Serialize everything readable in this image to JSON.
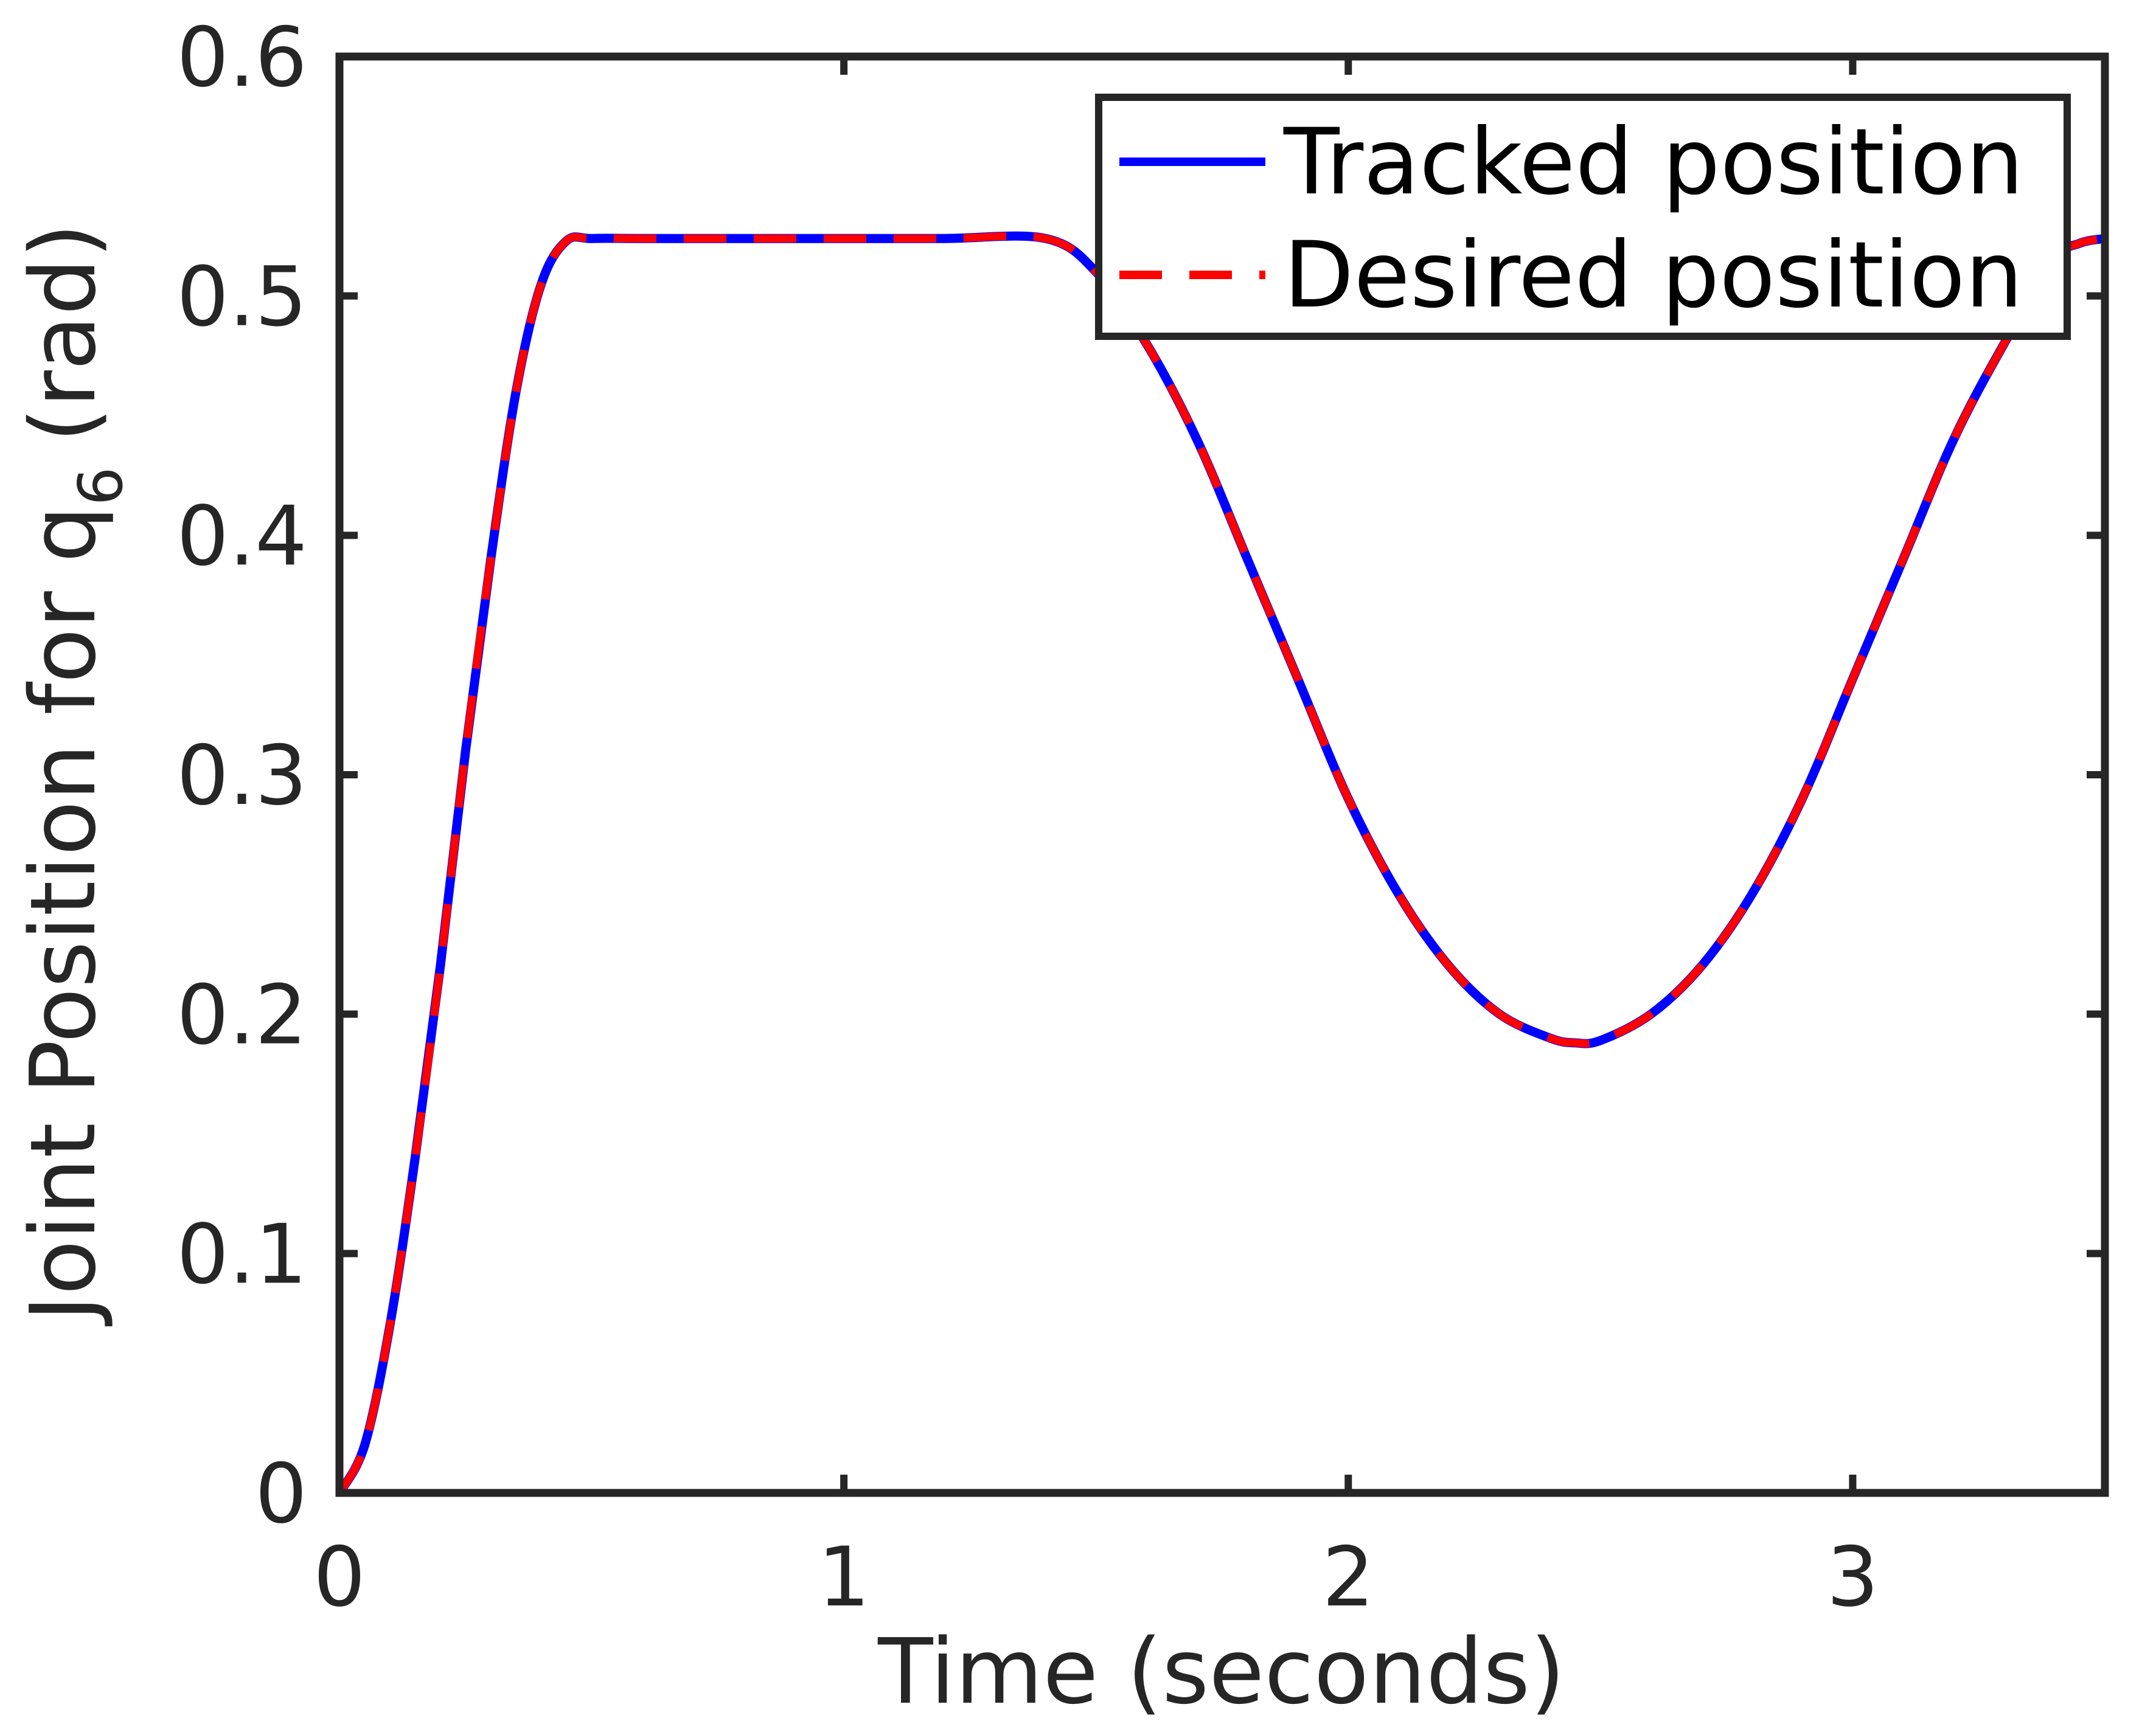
{
  "chart_data": {
    "type": "line",
    "xlabel": "Time (seconds)",
    "ylabel": {
      "main": "Joint Position for q",
      "subscript": "6",
      "unit": "(rad)"
    },
    "xlim": [
      0,
      3.5
    ],
    "ylim": [
      0,
      0.6
    ],
    "xticks": [
      0,
      1,
      2,
      3
    ],
    "xtick_labels": [
      "0",
      "1",
      "2",
      "3"
    ],
    "yticks": [
      0,
      0.1,
      0.2,
      0.3,
      0.4,
      0.5,
      0.6
    ],
    "ytick_labels": [
      "0",
      "0.1",
      "0.2",
      "0.3",
      "0.4",
      "0.5",
      "0.6"
    ],
    "grid": false,
    "legend_position": "top-right",
    "series": [
      {
        "name": "Tracked position",
        "color": "#0000ff",
        "style": "solid",
        "x": [
          0,
          0.05,
          0.1,
          0.15,
          0.2,
          0.25,
          0.3,
          0.35,
          0.4,
          0.45,
          0.5,
          0.6,
          0.8,
          1.0,
          1.2,
          1.4,
          1.5,
          1.6,
          1.7,
          1.8,
          1.9,
          2.0,
          2.1,
          2.2,
          2.3,
          2.4,
          2.45,
          2.5,
          2.6,
          2.7,
          2.8,
          2.9,
          3.0,
          3.1,
          3.2,
          3.3,
          3.4,
          3.45,
          3.5
        ],
        "y": [
          0,
          0.02,
          0.07,
          0.14,
          0.22,
          0.31,
          0.39,
          0.46,
          0.505,
          0.523,
          0.524,
          0.524,
          0.524,
          0.524,
          0.524,
          0.524,
          0.51,
          0.48,
          0.44,
          0.39,
          0.34,
          0.29,
          0.25,
          0.22,
          0.2,
          0.19,
          0.188,
          0.189,
          0.2,
          0.22,
          0.25,
          0.29,
          0.34,
          0.39,
          0.44,
          0.48,
          0.515,
          0.522,
          0.524
        ]
      },
      {
        "name": "Desired position",
        "color": "#ff0000",
        "style": "dashed",
        "x": [
          0,
          0.05,
          0.1,
          0.15,
          0.2,
          0.25,
          0.3,
          0.35,
          0.4,
          0.45,
          0.5,
          0.6,
          0.8,
          1.0,
          1.2,
          1.4,
          1.5,
          1.6,
          1.7,
          1.8,
          1.9,
          2.0,
          2.1,
          2.2,
          2.3,
          2.4,
          2.45,
          2.5,
          2.6,
          2.7,
          2.8,
          2.9,
          3.0,
          3.1,
          3.2,
          3.3,
          3.4,
          3.45,
          3.5
        ],
        "y": [
          0,
          0.02,
          0.07,
          0.14,
          0.22,
          0.31,
          0.39,
          0.46,
          0.505,
          0.523,
          0.524,
          0.524,
          0.524,
          0.524,
          0.524,
          0.524,
          0.51,
          0.48,
          0.44,
          0.39,
          0.34,
          0.29,
          0.25,
          0.22,
          0.2,
          0.19,
          0.188,
          0.189,
          0.2,
          0.22,
          0.25,
          0.29,
          0.34,
          0.39,
          0.44,
          0.48,
          0.515,
          0.522,
          0.524
        ]
      }
    ]
  }
}
